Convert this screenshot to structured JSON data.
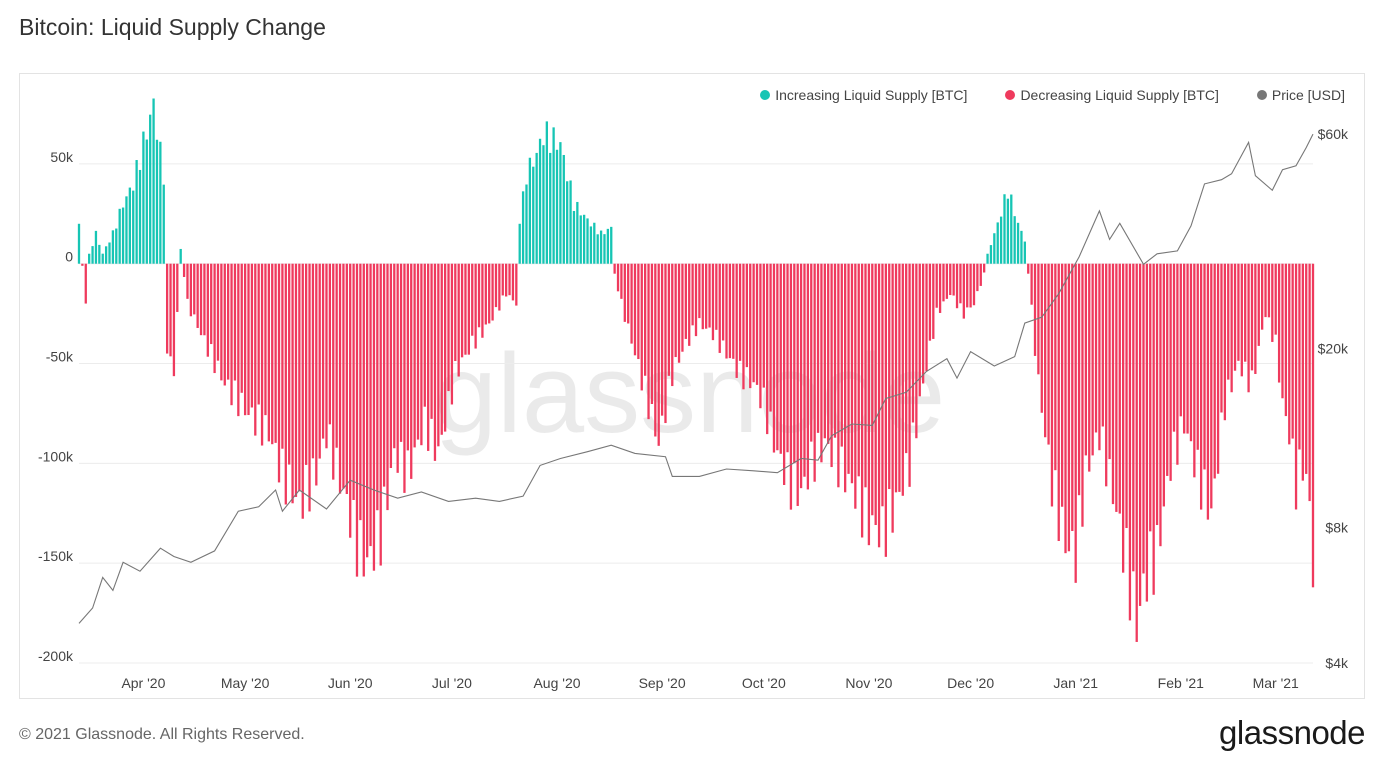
{
  "title": "Bitcoin: Liquid Supply Change",
  "footer": "© 2021 Glassnode. All Rights Reserved.",
  "logo": "glassnode",
  "watermark": "glassnode",
  "colors": {
    "increase": "#16c5b4",
    "decrease": "#ef3a5d",
    "price": "#777777",
    "grid": "#ececec"
  },
  "legend": [
    {
      "label": "Increasing Liquid Supply [BTC]",
      "color": "#16c5b4"
    },
    {
      "label": "Decreasing Liquid Supply [BTC]",
      "color": "#ef3a5d"
    },
    {
      "label": "Price [USD]",
      "color": "#777777"
    }
  ],
  "chart_data": {
    "type": "bar",
    "title": "Bitcoin: Liquid Supply Change",
    "x_ticks": [
      "Apr '20",
      "May '20",
      "Jun '20",
      "Jul '20",
      "Aug '20",
      "Sep '20",
      "Oct '20",
      "Nov '20",
      "Dec '20",
      "Jan '21",
      "Feb '21",
      "Mar '21"
    ],
    "y_left": {
      "ticks": [
        50000,
        0,
        -50000,
        -100000,
        -150000,
        -200000
      ],
      "tick_labels": [
        "50k",
        "0",
        "-50k",
        "-100k",
        "-150k",
        "-200k"
      ],
      "range": [
        -200000,
        80000
      ]
    },
    "y_right": {
      "scale": "log",
      "ticks": [
        60000,
        20000,
        8000,
        4000
      ],
      "tick_labels": [
        "$60k",
        "$20k",
        "$8k",
        "$4k"
      ],
      "range": [
        4000,
        70000
      ]
    },
    "x_range": [
      "2020-03-13",
      "2021-03-12"
    ],
    "supply_series": {
      "name": "Liquid Supply Change [BTC]",
      "start_date": "2020-03-13",
      "step_days": 1,
      "anchors": [
        [
          "2020-03-13",
          20000
        ],
        [
          "2020-03-15",
          -22000
        ],
        [
          "2020-03-16",
          5000
        ],
        [
          "2020-03-18",
          15000
        ],
        [
          "2020-03-20",
          5000
        ],
        [
          "2020-03-23",
          15000
        ],
        [
          "2020-03-26",
          30000
        ],
        [
          "2020-03-29",
          40000
        ],
        [
          "2020-04-01",
          60000
        ],
        [
          "2020-04-04",
          80000
        ],
        [
          "2020-04-06",
          55000
        ],
        [
          "2020-04-07",
          45000
        ],
        [
          "2020-04-08",
          -45000
        ],
        [
          "2020-04-10",
          -55000
        ],
        [
          "2020-04-12",
          8000
        ],
        [
          "2020-04-14",
          -20000
        ],
        [
          "2020-04-18",
          -35000
        ],
        [
          "2020-04-25",
          -60000
        ],
        [
          "2020-05-02",
          -75000
        ],
        [
          "2020-05-08",
          -85000
        ],
        [
          "2020-05-12",
          -105000
        ],
        [
          "2020-05-17",
          -120000
        ],
        [
          "2020-05-22",
          -105000
        ],
        [
          "2020-05-25",
          -85000
        ],
        [
          "2020-05-31",
          -120000
        ],
        [
          "2020-06-03",
          -140000
        ],
        [
          "2020-06-06",
          -150000
        ],
        [
          "2020-06-10",
          -135000
        ],
        [
          "2020-06-14",
          -95000
        ],
        [
          "2020-06-18",
          -105000
        ],
        [
          "2020-06-23",
          -80000
        ],
        [
          "2020-06-27",
          -95000
        ],
        [
          "2020-07-02",
          -55000
        ],
        [
          "2020-07-07",
          -40000
        ],
        [
          "2020-07-12",
          -30000
        ],
        [
          "2020-07-17",
          -15000
        ],
        [
          "2020-07-20",
          -20000
        ],
        [
          "2020-07-21",
          20000
        ],
        [
          "2020-07-23",
          45000
        ],
        [
          "2020-07-26",
          55000
        ],
        [
          "2020-07-28",
          65000
        ],
        [
          "2020-08-02",
          60000
        ],
        [
          "2020-08-06",
          30000
        ],
        [
          "2020-08-10",
          22000
        ],
        [
          "2020-08-14",
          15000
        ],
        [
          "2020-08-17",
          18000
        ],
        [
          "2020-08-18",
          -5000
        ],
        [
          "2020-08-20",
          -20000
        ],
        [
          "2020-08-24",
          -45000
        ],
        [
          "2020-08-28",
          -70000
        ],
        [
          "2020-08-31",
          -90000
        ],
        [
          "2020-09-04",
          -55000
        ],
        [
          "2020-09-08",
          -40000
        ],
        [
          "2020-09-12",
          -30000
        ],
        [
          "2020-09-16",
          -35000
        ],
        [
          "2020-09-20",
          -45000
        ],
        [
          "2020-09-24",
          -55000
        ],
        [
          "2020-09-28",
          -60000
        ],
        [
          "2020-10-01",
          -70000
        ],
        [
          "2020-10-05",
          -95000
        ],
        [
          "2020-10-09",
          -110000
        ],
        [
          "2020-10-12",
          -115000
        ],
        [
          "2020-10-15",
          -100000
        ],
        [
          "2020-10-19",
          -90000
        ],
        [
          "2020-10-23",
          -100000
        ],
        [
          "2020-10-28",
          -115000
        ],
        [
          "2020-11-01",
          -130000
        ],
        [
          "2020-11-05",
          -135000
        ],
        [
          "2020-11-09",
          -120000
        ],
        [
          "2020-11-13",
          -100000
        ],
        [
          "2020-11-17",
          -60000
        ],
        [
          "2020-11-21",
          -25000
        ],
        [
          "2020-11-25",
          -15000
        ],
        [
          "2020-11-29",
          -25000
        ],
        [
          "2020-12-02",
          -20000
        ],
        [
          "2020-12-05",
          -5000
        ],
        [
          "2020-12-06",
          5000
        ],
        [
          "2020-12-09",
          20000
        ],
        [
          "2020-12-12",
          37000
        ],
        [
          "2020-12-15",
          20000
        ],
        [
          "2020-12-17",
          12000
        ],
        [
          "2020-12-18",
          -5000
        ],
        [
          "2020-12-21",
          -60000
        ],
        [
          "2020-12-25",
          -110000
        ],
        [
          "2020-12-29",
          -140000
        ],
        [
          "2021-01-01",
          -145000
        ],
        [
          "2021-01-04",
          -105000
        ],
        [
          "2021-01-08",
          -85000
        ],
        [
          "2021-01-12",
          -115000
        ],
        [
          "2021-01-16",
          -150000
        ],
        [
          "2021-01-19",
          -180000
        ],
        [
          "2021-01-22",
          -155000
        ],
        [
          "2021-01-25",
          -145000
        ],
        [
          "2021-01-29",
          -100000
        ],
        [
          "2021-02-02",
          -80000
        ],
        [
          "2021-02-06",
          -105000
        ],
        [
          "2021-02-10",
          -125000
        ],
        [
          "2021-02-14",
          -70000
        ],
        [
          "2021-02-18",
          -50000
        ],
        [
          "2021-02-22",
          -60000
        ],
        [
          "2021-02-26",
          -25000
        ],
        [
          "2021-03-01",
          -40000
        ],
        [
          "2021-03-03",
          -70000
        ],
        [
          "2021-03-05",
          -85000
        ],
        [
          "2021-03-07",
          -110000
        ],
        [
          "2021-03-09",
          -100000
        ],
        [
          "2021-03-11",
          -120000
        ],
        [
          "2021-03-12",
          -153000
        ]
      ]
    },
    "price_series": {
      "name": "Price [USD]",
      "points": [
        [
          "2020-03-13",
          4900
        ],
        [
          "2020-03-17",
          5300
        ],
        [
          "2020-03-20",
          6200
        ],
        [
          "2020-03-23",
          5800
        ],
        [
          "2020-03-26",
          6700
        ],
        [
          "2020-03-31",
          6400
        ],
        [
          "2020-04-06",
          7200
        ],
        [
          "2020-04-10",
          6900
        ],
        [
          "2020-04-15",
          6700
        ],
        [
          "2020-04-22",
          7100
        ],
        [
          "2020-04-29",
          8700
        ],
        [
          "2020-05-05",
          8900
        ],
        [
          "2020-05-10",
          9700
        ],
        [
          "2020-05-12",
          8700
        ],
        [
          "2020-05-17",
          9700
        ],
        [
          "2020-05-25",
          8800
        ],
        [
          "2020-06-01",
          10200
        ],
        [
          "2020-06-08",
          9700
        ],
        [
          "2020-06-15",
          9300
        ],
        [
          "2020-06-22",
          9600
        ],
        [
          "2020-06-30",
          9150
        ],
        [
          "2020-07-08",
          9300
        ],
        [
          "2020-07-15",
          9150
        ],
        [
          "2020-07-22",
          9400
        ],
        [
          "2020-07-27",
          11000
        ],
        [
          "2020-08-02",
          11400
        ],
        [
          "2020-08-10",
          11800
        ],
        [
          "2020-08-17",
          12200
        ],
        [
          "2020-08-24",
          11700
        ],
        [
          "2020-09-02",
          11500
        ],
        [
          "2020-09-04",
          10400
        ],
        [
          "2020-09-12",
          10400
        ],
        [
          "2020-09-20",
          10800
        ],
        [
          "2020-09-28",
          10700
        ],
        [
          "2020-10-05",
          10600
        ],
        [
          "2020-10-12",
          11400
        ],
        [
          "2020-10-17",
          11300
        ],
        [
          "2020-10-21",
          12800
        ],
        [
          "2020-10-27",
          13600
        ],
        [
          "2020-11-02",
          13500
        ],
        [
          "2020-11-06",
          15500
        ],
        [
          "2020-11-12",
          16000
        ],
        [
          "2020-11-18",
          17800
        ],
        [
          "2020-11-24",
          19000
        ],
        [
          "2020-11-27",
          17200
        ],
        [
          "2020-12-01",
          19700
        ],
        [
          "2020-12-08",
          18300
        ],
        [
          "2020-12-14",
          19200
        ],
        [
          "2020-12-17",
          22800
        ],
        [
          "2020-12-22",
          23500
        ],
        [
          "2020-12-27",
          26500
        ],
        [
          "2021-01-02",
          32000
        ],
        [
          "2021-01-08",
          40500
        ],
        [
          "2021-01-11",
          35000
        ],
        [
          "2021-01-14",
          38000
        ],
        [
          "2021-01-21",
          30800
        ],
        [
          "2021-01-25",
          32500
        ],
        [
          "2021-01-31",
          33000
        ],
        [
          "2021-02-04",
          37500
        ],
        [
          "2021-02-08",
          46500
        ],
        [
          "2021-02-13",
          47500
        ],
        [
          "2021-02-16",
          49000
        ],
        [
          "2021-02-21",
          57500
        ],
        [
          "2021-02-23",
          48500
        ],
        [
          "2021-02-28",
          45000
        ],
        [
          "2021-03-03",
          50000
        ],
        [
          "2021-03-07",
          51000
        ],
        [
          "2021-03-10",
          56000
        ],
        [
          "2021-03-12",
          60000
        ]
      ]
    },
    "grid": true,
    "legend_position": "top-right"
  }
}
